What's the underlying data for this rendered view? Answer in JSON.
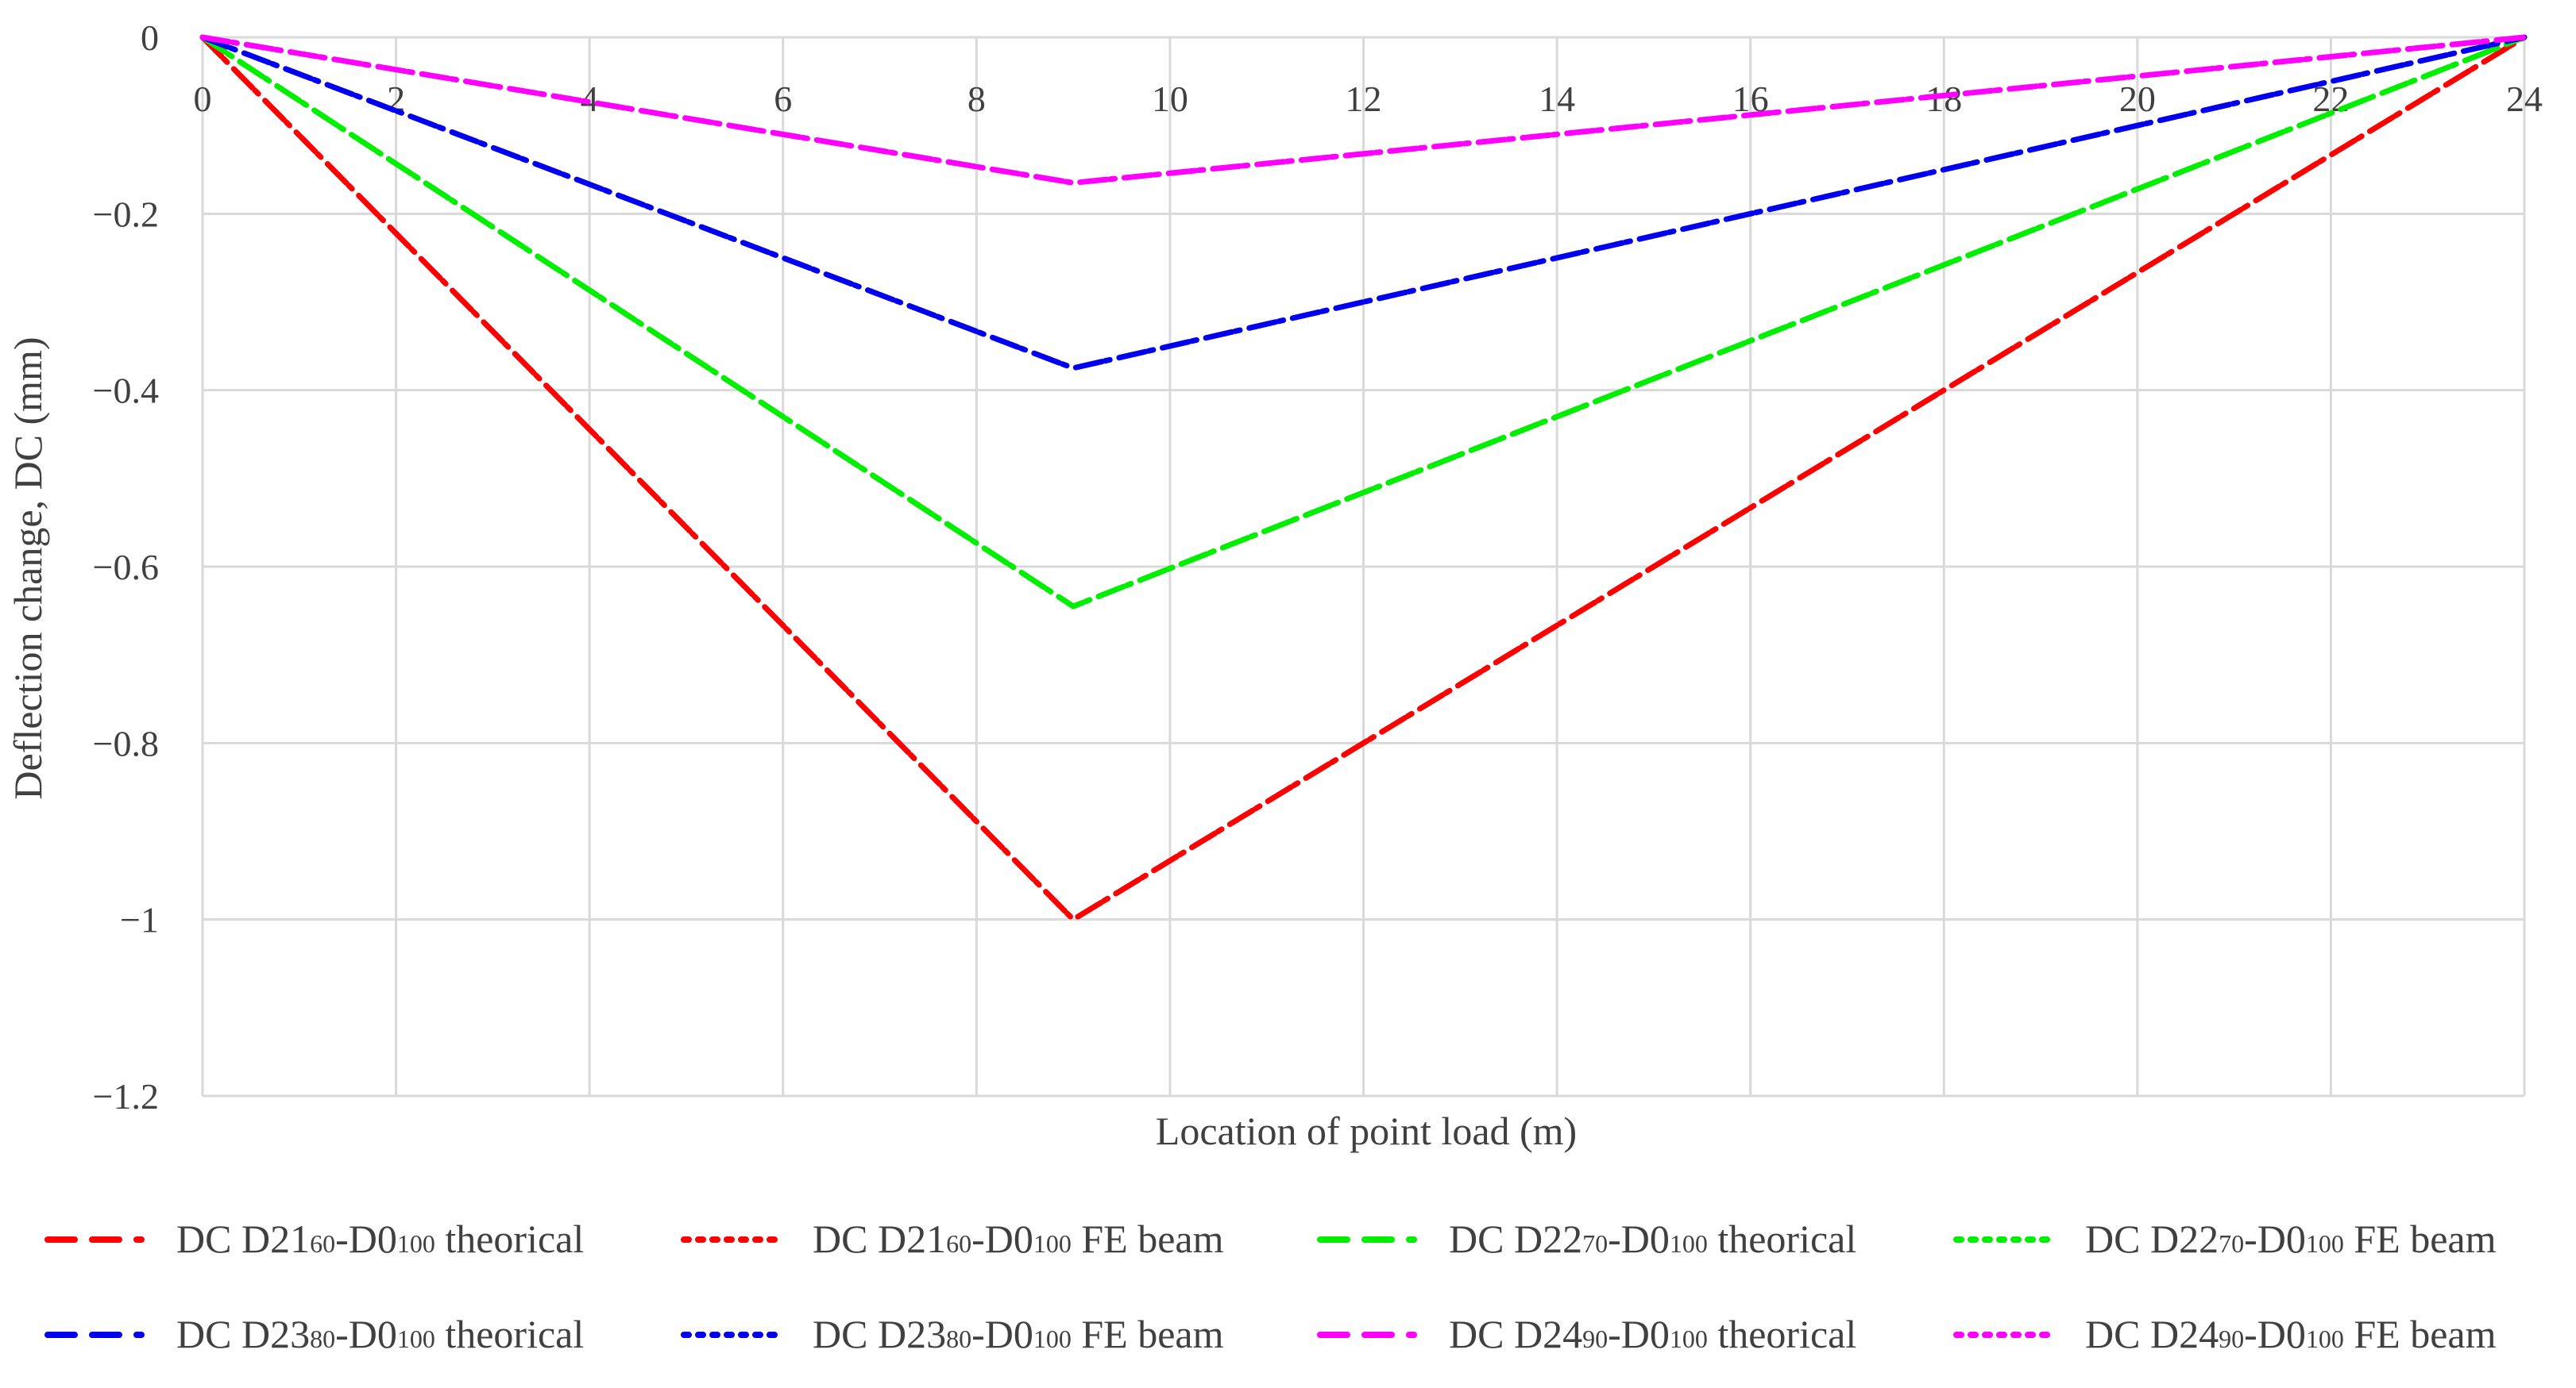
{
  "chart_data": {
    "type": "line",
    "title": "",
    "xlabel": "Location of point load (m)",
    "ylabel": "Deflection change, DC (mm)",
    "xlim": [
      0,
      24
    ],
    "ylim": [
      -1.2,
      0
    ],
    "x_ticks": [
      "0",
      "2",
      "4",
      "6",
      "8",
      "10",
      "12",
      "14",
      "16",
      "18",
      "20",
      "22",
      "24"
    ],
    "y_ticks": [
      "0",
      "−0.2",
      "−0.4",
      "−0.6",
      "−0.8",
      "−1",
      "−1.2"
    ],
    "grid": true,
    "legend_position": "bottom",
    "colors": {
      "D21": "#ff0000",
      "D22": "#00ee00",
      "D23": "#0000ee",
      "D24": "#ff00ff"
    },
    "series": [
      {
        "name_prefix": "DC D21",
        "name_sub1": "60",
        "name_mid": "-D0",
        "name_sub2": "100",
        "name_suffix": " theorical",
        "group": "D21",
        "style": "dash",
        "x": [
          0,
          9,
          24
        ],
        "y": [
          0,
          -1.0,
          0
        ]
      },
      {
        "name_prefix": "DC D21",
        "name_sub1": "60",
        "name_mid": "-D0",
        "name_sub2": "100",
        "name_suffix": " FE beam",
        "group": "D21",
        "style": "dot",
        "x": [
          0,
          9,
          24
        ],
        "y": [
          0,
          -1.0,
          0
        ]
      },
      {
        "name_prefix": "DC D22",
        "name_sub1": "70",
        "name_mid": "-D0",
        "name_sub2": "100",
        "name_suffix": " theorical",
        "group": "D22",
        "style": "dash",
        "x": [
          0,
          9,
          24
        ],
        "y": [
          0,
          -0.645,
          0
        ]
      },
      {
        "name_prefix": "DC D22",
        "name_sub1": "70",
        "name_mid": "-D0",
        "name_sub2": "100",
        "name_suffix": " FE beam",
        "group": "D22",
        "style": "dot",
        "x": [
          0,
          9,
          24
        ],
        "y": [
          0,
          -0.645,
          0
        ]
      },
      {
        "name_prefix": "DC D23",
        "name_sub1": "80",
        "name_mid": "-D0",
        "name_sub2": "100",
        "name_suffix": " theorical",
        "group": "D23",
        "style": "dash",
        "x": [
          0,
          9,
          24
        ],
        "y": [
          0,
          -0.375,
          0
        ]
      },
      {
        "name_prefix": "DC D23",
        "name_sub1": "80",
        "name_mid": "-D0",
        "name_sub2": "100",
        "name_suffix": " FE beam",
        "group": "D23",
        "style": "dot",
        "x": [
          0,
          9,
          24
        ],
        "y": [
          0,
          -0.375,
          0
        ]
      },
      {
        "name_prefix": "DC D24",
        "name_sub1": "90",
        "name_mid": "-D0",
        "name_sub2": "100",
        "name_suffix": " theorical",
        "group": "D24",
        "style": "dash",
        "x": [
          0,
          9,
          24
        ],
        "y": [
          0,
          -0.165,
          0
        ]
      },
      {
        "name_prefix": "DC D24",
        "name_sub1": "90",
        "name_mid": "-D0",
        "name_sub2": "100",
        "name_suffix": " FE beam",
        "group": "D24",
        "style": "dot",
        "x": [
          0,
          9,
          24
        ],
        "y": [
          0,
          -0.165,
          0
        ]
      }
    ]
  }
}
